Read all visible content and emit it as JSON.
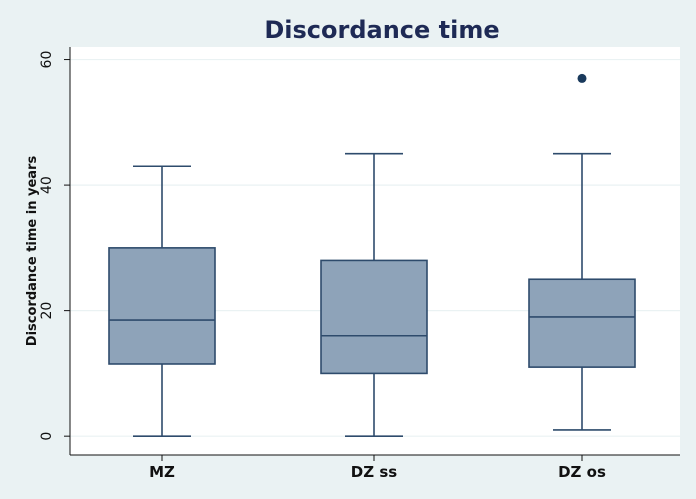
{
  "chart_data": {
    "type": "boxplot",
    "title": "Discordance time",
    "xlabel": "",
    "ylabel": "Discordance time in years",
    "ylim": [
      -3,
      62
    ],
    "yticks": [
      0,
      20,
      40,
      60
    ],
    "categories": [
      "MZ",
      "DZ ss",
      "DZ os"
    ],
    "grid": true,
    "legend": "none",
    "boxes": [
      {
        "category": "MZ",
        "min": 0,
        "q1": 11.5,
        "median": 18.5,
        "q3": 30,
        "max": 43,
        "outliers": []
      },
      {
        "category": "DZ ss",
        "min": 0,
        "q1": 10,
        "median": 16,
        "q3": 28,
        "max": 45,
        "outliers": []
      },
      {
        "category": "DZ os",
        "min": 1,
        "q1": 11,
        "median": 19,
        "q3": 25,
        "max": 45,
        "outliers": [
          57
        ]
      }
    ],
    "colors": {
      "background": "#eaf2f3",
      "plot_area": "#ffffff",
      "box_fill": "#8ea3b9",
      "box_stroke": "#2e4b6c",
      "outlier": "#1a3a5c",
      "gridline": "#eaf2f3",
      "title": "#1e2a55"
    }
  }
}
